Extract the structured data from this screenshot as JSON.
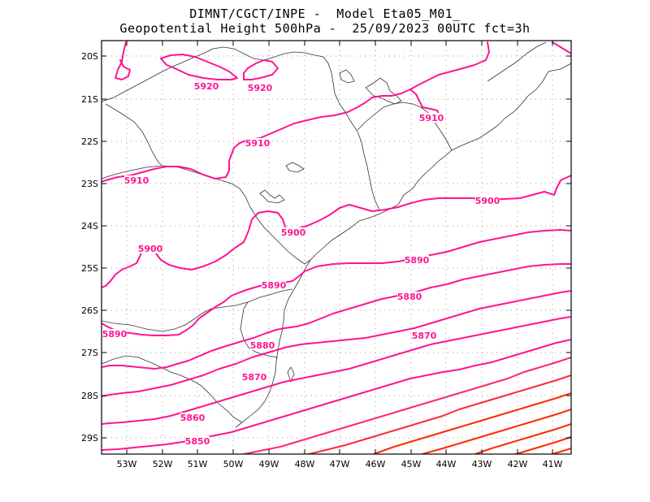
{
  "title_line1": "DIMNT/CGCT/INPE -  Model Eta05_M01_",
  "title_line2": "Geopotential Height 500hPa -  25/09/2023 00UTC fct=3h",
  "lon_labels": [
    "53W",
    "52W",
    "51W",
    "50W",
    "49W",
    "48W",
    "47W",
    "46W",
    "45W",
    "44W",
    "43W",
    "42W",
    "41W"
  ],
  "lat_labels": [
    "20S",
    "21S",
    "22S",
    "23S",
    "24S",
    "25S",
    "26S",
    "27S",
    "28S",
    "29S"
  ],
  "contour_labels": [
    {
      "text": "5920",
      "value": 5920
    },
    {
      "text": "5920",
      "value": 5920
    },
    {
      "text": "5910",
      "value": 5910
    },
    {
      "text": "5910",
      "value": 5910
    },
    {
      "text": "5910",
      "value": 5910
    },
    {
      "text": "5900",
      "value": 5900
    },
    {
      "text": "5900",
      "value": 5900
    },
    {
      "text": "5900",
      "value": 5900
    },
    {
      "text": "5890",
      "value": 5890
    },
    {
      "text": "5890",
      "value": 5890
    },
    {
      "text": "5890",
      "value": 5890
    },
    {
      "text": "5880",
      "value": 5880
    },
    {
      "text": "5880",
      "value": 5880
    },
    {
      "text": "5870",
      "value": 5870
    },
    {
      "text": "5870",
      "value": 5870
    },
    {
      "text": "5860",
      "value": 5860
    },
    {
      "text": "5850",
      "value": 5850
    }
  ],
  "colors": {
    "contour": "#ff1493",
    "contour_low": "#ff2a00",
    "grid": "#999999",
    "coast": "#333333"
  }
}
